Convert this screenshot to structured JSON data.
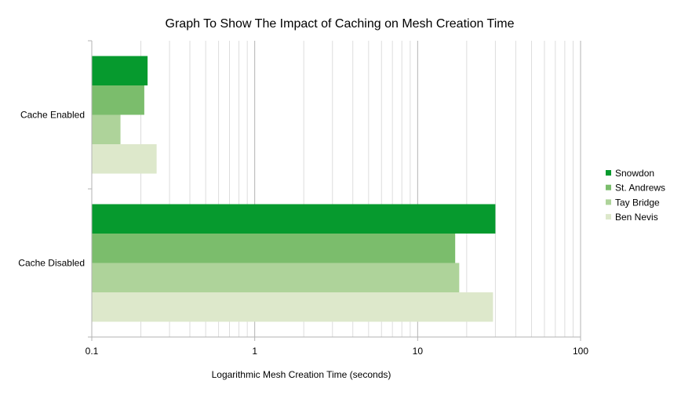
{
  "chart_data": {
    "type": "bar",
    "orientation": "horizontal",
    "title": "Graph To Show The Impact of Caching on Mesh Creation Time",
    "xlabel": "Logarithmic Mesh Creation Time (seconds)",
    "ylabel": "",
    "x_scale": "log",
    "xlim": [
      0.1,
      100
    ],
    "x_ticks": [
      0.1,
      1,
      10,
      100
    ],
    "x_tick_labels": [
      "0.1",
      "1",
      "10",
      "100"
    ],
    "grid": true,
    "legend_position": "right",
    "categories": [
      "Cache Enabled",
      "Cache Disabled"
    ],
    "series": [
      {
        "name": "Snowdon",
        "color": "#069a2e",
        "values": [
          0.22,
          30
        ]
      },
      {
        "name": "St. Andrews",
        "color": "#7bbd6c",
        "values": [
          0.21,
          17
        ]
      },
      {
        "name": "Tay Bridge",
        "color": "#aed39a",
        "values": [
          0.15,
          18
        ]
      },
      {
        "name": "Ben Nevis",
        "color": "#dde8cb",
        "values": [
          0.25,
          29
        ]
      }
    ]
  }
}
